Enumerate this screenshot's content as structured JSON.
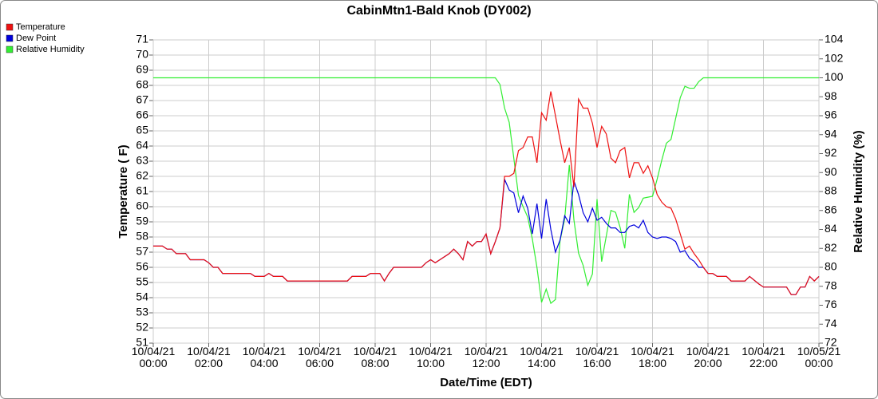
{
  "chart_data": {
    "type": "line",
    "title": "CabinMtn1-Bald Knob (DY002)",
    "xlabel": "Date/Time (EDT)",
    "ylabel": "Temperature ( F)",
    "y2label": "Relative Humidity (%)",
    "x": [
      "10/04/21 00:00",
      "10/04/21 00:20",
      "10/04/21 00:30",
      "10/04/21 00:40",
      "10/04/21 00:50",
      "10/04/21 01:10",
      "10/04/21 01:20",
      "10/04/21 01:50",
      "10/04/21 02:00",
      "10/04/21 02:10",
      "10/04/21 02:20",
      "10/04/21 02:30",
      "10/04/21 03:30",
      "10/04/21 03:40",
      "10/04/21 04:00",
      "10/04/21 04:10",
      "10/04/21 04:20",
      "10/04/21 04:40",
      "10/04/21 04:50",
      "10/04/21 07:00",
      "10/04/21 07:10",
      "10/04/21 07:40",
      "10/04/21 07:50",
      "10/04/21 08:10",
      "10/04/21 08:20",
      "10/04/21 08:30",
      "10/04/21 08:40",
      "10/04/21 09:40",
      "10/04/21 09:50",
      "10/04/21 10:00",
      "10/04/21 10:10",
      "10/04/21 10:20",
      "10/04/21 10:40",
      "10/04/21 10:50",
      "10/04/21 11:00",
      "10/04/21 11:10",
      "10/04/21 11:20",
      "10/04/21 11:30",
      "10/04/21 11:40",
      "10/04/21 11:50",
      "10/04/21 12:00",
      "10/04/21 12:10",
      "10/04/21 12:20",
      "10/04/21 12:30",
      "10/04/21 12:40",
      "10/04/21 12:50",
      "10/04/21 13:00",
      "10/04/21 13:10",
      "10/04/21 13:20",
      "10/04/21 13:30",
      "10/04/21 13:40",
      "10/04/21 13:50",
      "10/04/21 14:00",
      "10/04/21 14:10",
      "10/04/21 14:20",
      "10/04/21 14:30",
      "10/04/21 14:40",
      "10/04/21 14:50",
      "10/04/21 15:00",
      "10/04/21 15:10",
      "10/04/21 15:20",
      "10/04/21 15:30",
      "10/04/21 15:40",
      "10/04/21 15:50",
      "10/04/21 16:00",
      "10/04/21 16:10",
      "10/04/21 16:20",
      "10/04/21 16:30",
      "10/04/21 16:40",
      "10/04/21 16:50",
      "10/04/21 17:00",
      "10/04/21 17:10",
      "10/04/21 17:20",
      "10/04/21 17:30",
      "10/04/21 17:40",
      "10/04/21 17:50",
      "10/04/21 18:00",
      "10/04/21 18:10",
      "10/04/21 18:20",
      "10/04/21 18:30",
      "10/04/21 18:40",
      "10/04/21 18:50",
      "10/04/21 19:00",
      "10/04/21 19:10",
      "10/04/21 19:20",
      "10/04/21 19:30",
      "10/04/21 19:40",
      "10/04/21 19:50",
      "10/04/21 20:00",
      "10/04/21 20:10",
      "10/04/21 20:20",
      "10/04/21 20:40",
      "10/04/21 20:50",
      "10/04/21 21:20",
      "10/04/21 21:30",
      "10/04/21 21:50",
      "10/04/21 22:00",
      "10/04/21 22:50",
      "10/04/21 23:00",
      "10/04/21 23:10",
      "10/04/21 23:20",
      "10/04/21 23:30",
      "10/04/21 23:40",
      "10/04/21 23:50",
      "10/05/21 00:00"
    ],
    "series": [
      {
        "name": "Relative Humidity",
        "color": "#33ee33",
        "axis": "y2",
        "values": [
          100,
          100,
          100,
          100,
          100,
          100,
          100,
          100,
          100,
          100,
          100,
          100,
          100,
          100,
          100,
          100,
          100,
          100,
          100,
          100,
          100,
          100,
          100,
          100,
          100,
          100,
          100,
          100,
          100,
          100,
          100,
          100,
          100,
          100,
          100,
          100,
          100,
          100,
          100,
          100,
          100,
          100,
          100,
          99.3,
          96.8,
          95.3,
          91.5,
          87.6,
          86.4,
          85.3,
          83.0,
          80.0,
          76.3,
          77.7,
          76.2,
          76.6,
          82.8,
          85.1,
          90.8,
          85.0,
          81.5,
          80.2,
          78.1,
          79.3,
          87.2,
          80.6,
          83.3,
          86.0,
          85.8,
          84.2,
          82.0,
          87.7,
          85.8,
          86.3,
          87.3,
          87.4,
          87.5,
          89.3,
          91.3,
          93.1,
          93.5,
          95.7,
          97.9,
          99.1,
          98.9,
          98.9,
          99.6,
          100,
          100,
          100,
          100,
          100,
          100,
          100,
          100,
          100,
          100,
          100,
          100,
          100,
          100,
          100,
          100,
          100,
          100
        ]
      },
      {
        "name": "Dew Point",
        "color": "#0000dd",
        "values": [
          57.4,
          57.4,
          57.2,
          57.2,
          56.9,
          56.9,
          56.5,
          56.5,
          56.3,
          56.0,
          56.0,
          55.6,
          55.6,
          55.4,
          55.4,
          55.6,
          55.4,
          55.4,
          55.1,
          55.1,
          55.4,
          55.4,
          55.6,
          55.6,
          55.1,
          55.6,
          56.0,
          56.0,
          56.3,
          56.5,
          56.3,
          56.5,
          56.9,
          57.2,
          56.9,
          56.5,
          57.7,
          57.4,
          57.7,
          57.7,
          58.2,
          56.9,
          57.7,
          58.6,
          61.8,
          61.1,
          60.9,
          59.6,
          60.7,
          59.9,
          58.2,
          60.2,
          57.9,
          60.5,
          58.5,
          57.0,
          57.8,
          59.4,
          58.9,
          61.7,
          60.8,
          59.6,
          59.0,
          59.9,
          59.1,
          59.3,
          58.9,
          58.6,
          58.6,
          58.3,
          58.3,
          58.7,
          58.8,
          58.6,
          59.1,
          58.3,
          58.0,
          57.9,
          58.0,
          58.0,
          57.9,
          57.7,
          57.0,
          57.1,
          56.6,
          56.4,
          56.0,
          56.0,
          55.6,
          55.6,
          55.4,
          55.4,
          55.1,
          55.1,
          55.4,
          54.9,
          54.7,
          54.7,
          54.2,
          54.2,
          54.7,
          54.7,
          55.4,
          55.1,
          55.4
        ]
      },
      {
        "name": "Temperature",
        "color": "#ee1111",
        "values": [
          57.4,
          57.4,
          57.2,
          57.2,
          56.9,
          56.9,
          56.5,
          56.5,
          56.3,
          56.0,
          56.0,
          55.6,
          55.6,
          55.4,
          55.4,
          55.6,
          55.4,
          55.4,
          55.1,
          55.1,
          55.4,
          55.4,
          55.6,
          55.6,
          55.1,
          55.6,
          56.0,
          56.0,
          56.3,
          56.5,
          56.3,
          56.5,
          56.9,
          57.2,
          56.9,
          56.5,
          57.7,
          57.4,
          57.7,
          57.7,
          58.2,
          56.9,
          57.7,
          58.6,
          62.0,
          62.0,
          62.2,
          63.7,
          63.9,
          64.6,
          64.6,
          62.9,
          66.2,
          65.7,
          67.6,
          66.0,
          64.4,
          62.9,
          63.9,
          61.3,
          67.1,
          66.5,
          66.5,
          65.5,
          63.9,
          65.3,
          64.8,
          63.2,
          62.9,
          63.7,
          63.9,
          61.9,
          62.9,
          62.9,
          62.2,
          62.7,
          61.9,
          60.8,
          60.3,
          60.0,
          59.9,
          59.2,
          58.2,
          57.2,
          57.4,
          56.9,
          56.5,
          56.0,
          55.6,
          55.6,
          55.4,
          55.4,
          55.1,
          55.1,
          55.4,
          54.9,
          54.7,
          54.7,
          54.2,
          54.2,
          54.7,
          54.7,
          55.4,
          55.1,
          55.4
        ]
      }
    ],
    "legend_order": [
      2,
      1,
      0
    ],
    "legend": "top-left",
    "xlim": [
      "10/04/21 00:00",
      "10/05/21 00:00"
    ],
    "xticks": [
      "10/04/21 00:00",
      "10/04/21 02:00",
      "10/04/21 04:00",
      "10/04/21 06:00",
      "10/04/21 08:00",
      "10/04/21 10:00",
      "10/04/21 12:00",
      "10/04/21 14:00",
      "10/04/21 16:00",
      "10/04/21 18:00",
      "10/04/21 20:00",
      "10/04/21 22:00",
      "10/05/21 00:00"
    ],
    "ylim": [
      51,
      71
    ],
    "yticks": [
      51,
      52,
      53,
      54,
      55,
      56,
      57,
      58,
      59,
      60,
      61,
      62,
      63,
      64,
      65,
      66,
      67,
      68,
      69,
      70,
      71
    ],
    "y2lim": [
      72,
      104
    ],
    "y2ticks": [
      72,
      74,
      76,
      78,
      80,
      82,
      84,
      86,
      88,
      90,
      92,
      94,
      96,
      98,
      100,
      102,
      104
    ],
    "grid": true
  }
}
